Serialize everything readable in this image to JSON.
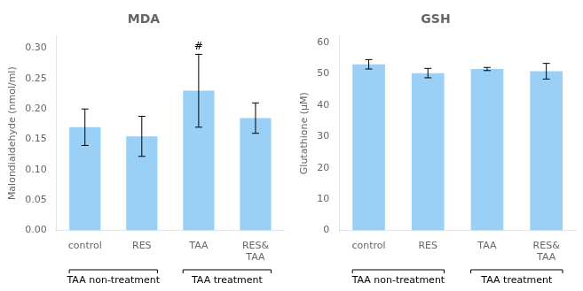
{
  "chart_data": [
    {
      "type": "bar",
      "title": "MDA",
      "ylabel": "Malondialdehyde (nmol/ml)",
      "categories": [
        "control",
        "RES",
        "TAA",
        "RES&\nTAA"
      ],
      "values": [
        0.17,
        0.155,
        0.23,
        0.185
      ],
      "errors": [
        0.03,
        0.033,
        0.06,
        0.025
      ],
      "ylim": [
        0,
        0.32
      ],
      "yticks": [
        {
          "value": 0,
          "label": "0.00"
        },
        0.05,
        {
          "value": 0.1,
          "label": "0.10"
        },
        0.15,
        {
          "value": 0.2,
          "label": "0.20"
        },
        0.25,
        {
          "value": 0.3,
          "label": "0.30"
        }
      ],
      "groups": [
        {
          "label": "TAA non-treatment",
          "categories": [
            "control",
            "RES"
          ]
        },
        {
          "label": "TAA treatment",
          "categories": [
            "TAA",
            "RES&\nTAA"
          ]
        }
      ],
      "annotations": [
        {
          "text": "#",
          "category": "TAA"
        }
      ],
      "grid": false
    },
    {
      "type": "bar",
      "title": "GSH",
      "ylabel": "Glutathione (μM)",
      "categories": [
        "control",
        "RES",
        "TAA",
        "RES&\nTAA"
      ],
      "values": [
        53.0,
        50.2,
        51.5,
        50.8
      ],
      "errors": [
        1.5,
        1.5,
        0.5,
        2.5
      ],
      "ylim": [
        0,
        62
      ],
      "yticks": [
        0,
        10,
        20,
        30,
        40,
        50,
        60
      ],
      "groups": [
        {
          "label": "TAA non-treatment",
          "categories": [
            "control",
            "RES"
          ]
        },
        {
          "label": "TAA treatment",
          "categories": [
            "TAA",
            "RES&\nTAA"
          ]
        }
      ],
      "grid": false
    }
  ]
}
